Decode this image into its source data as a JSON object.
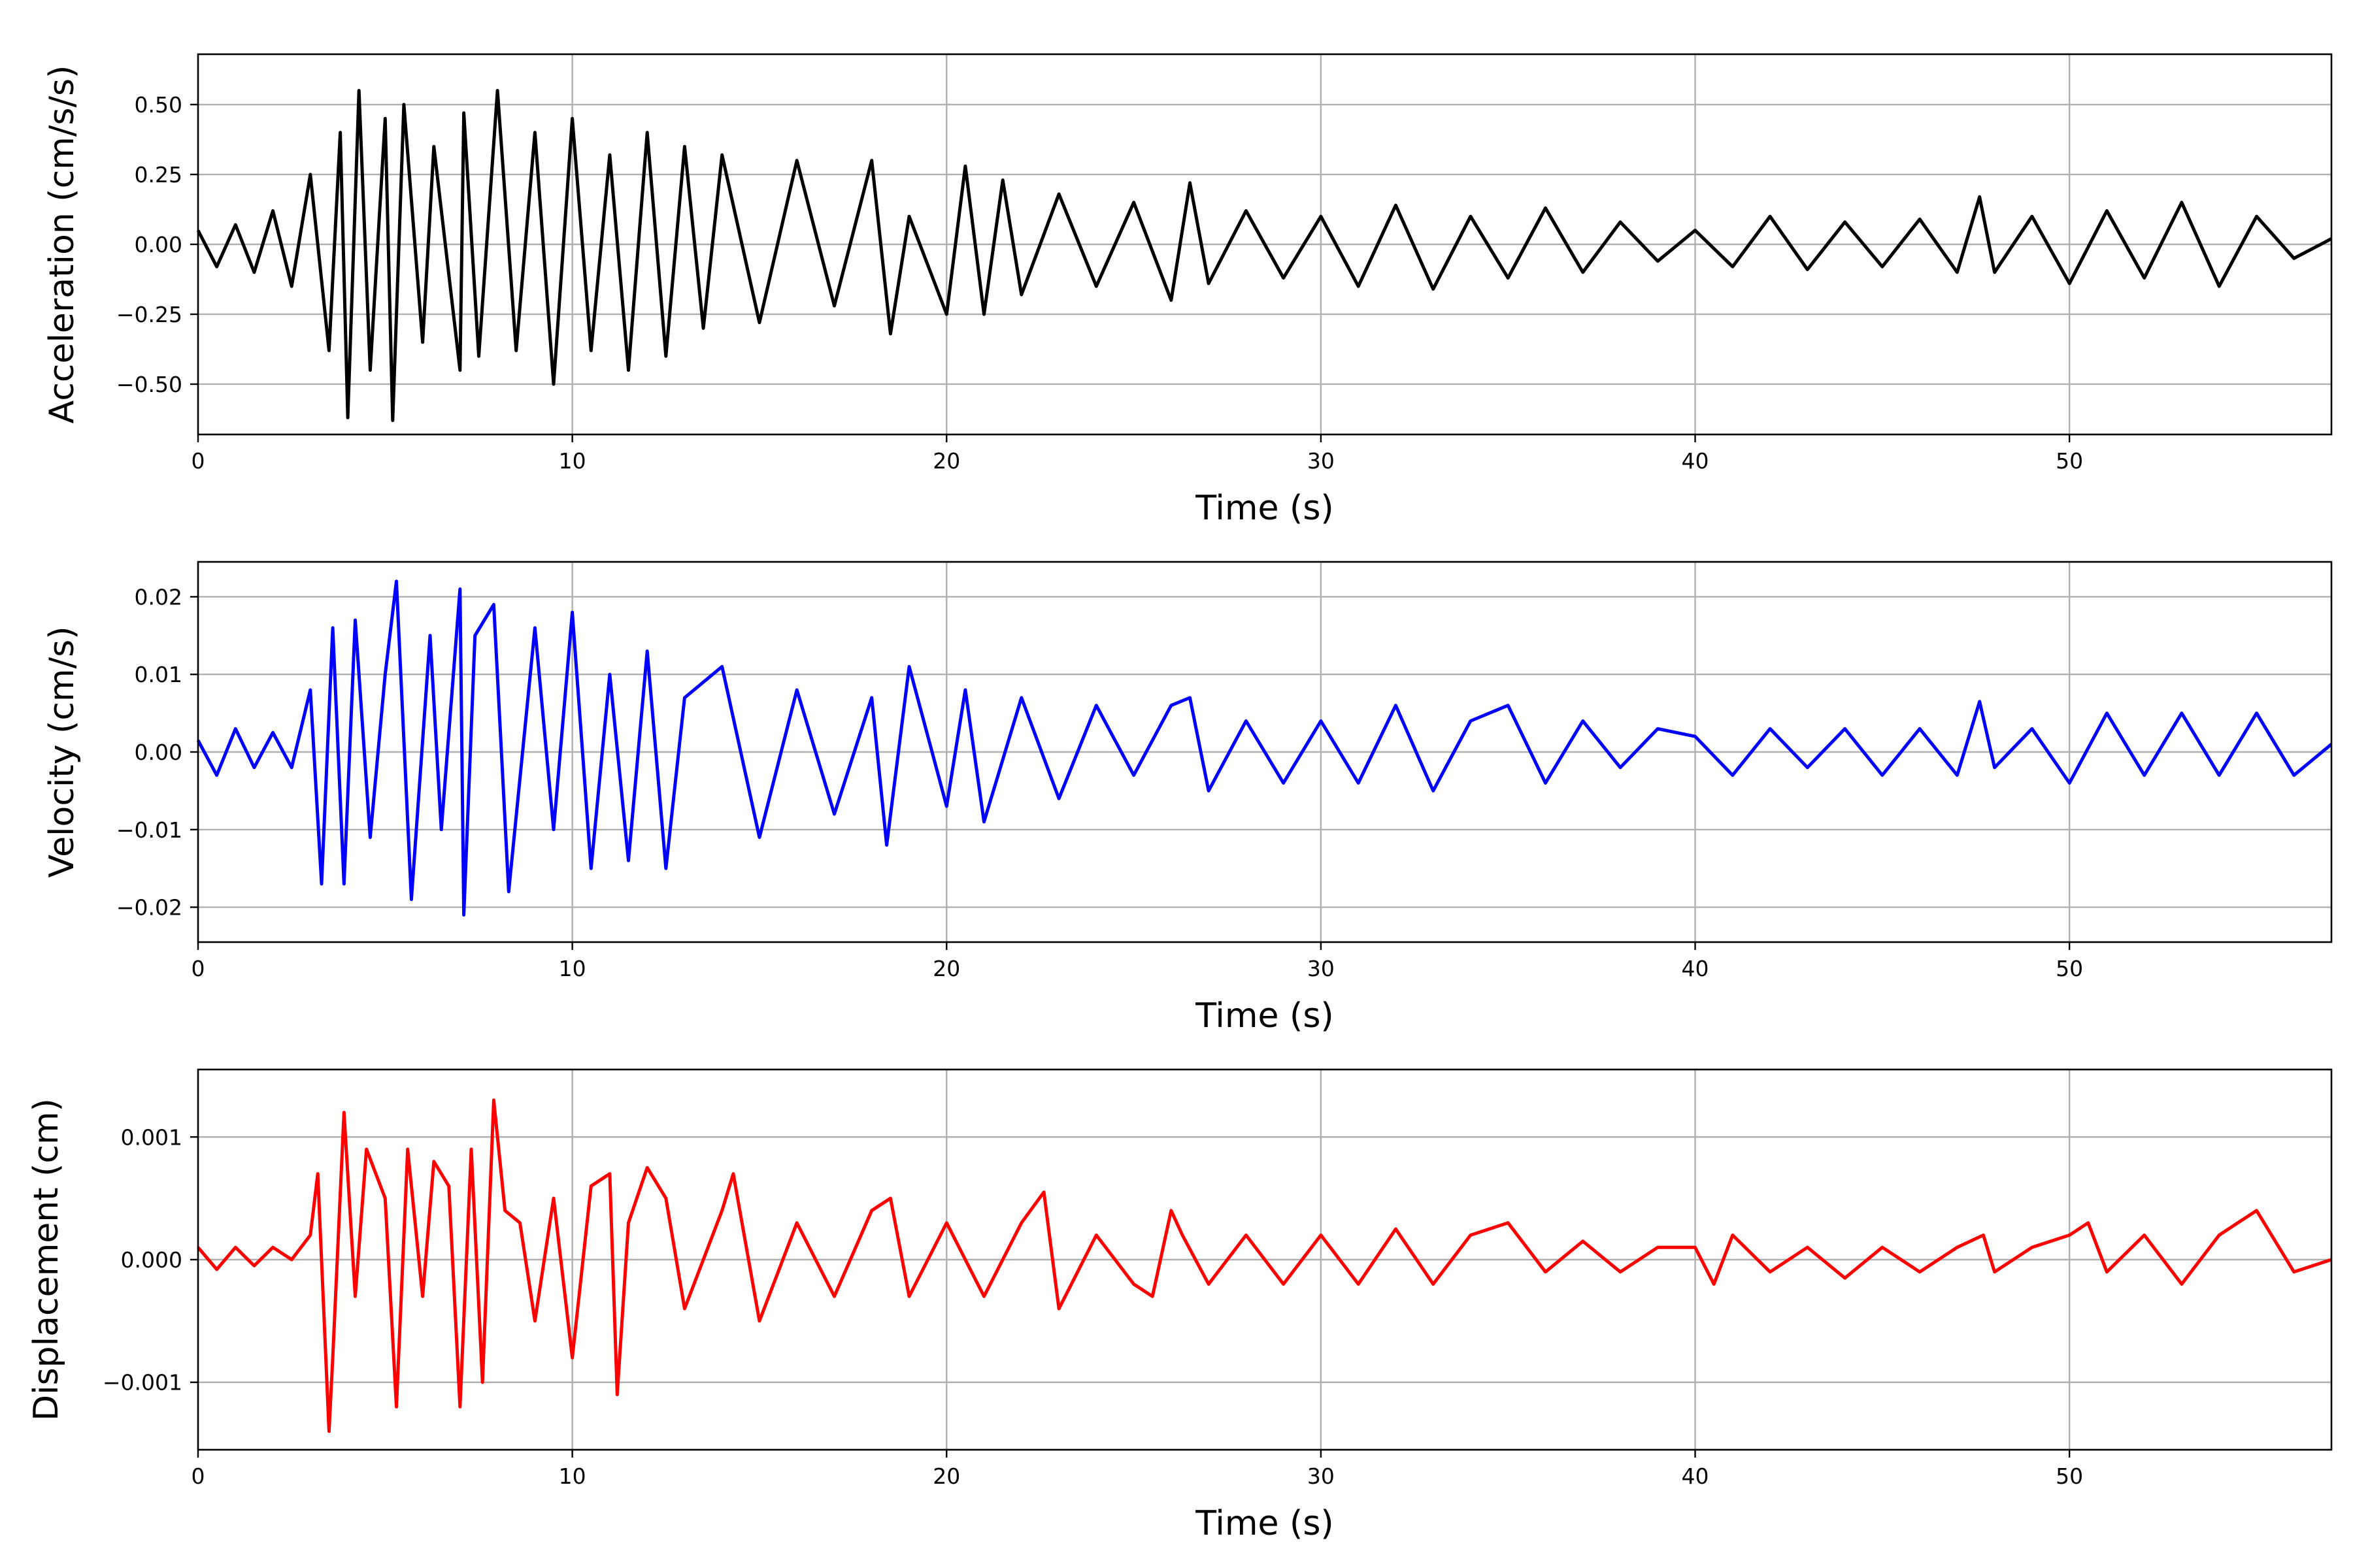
{
  "chart_data": [
    {
      "type": "line",
      "xlabel": "Time (s)",
      "ylabel": "Acceleration (cm/s/s)",
      "xlim": [
        0,
        57
      ],
      "ylim": [
        -0.68,
        0.68
      ],
      "x_ticks": [
        0,
        10,
        20,
        30,
        40,
        50
      ],
      "x_tick_labels": [
        "0",
        "10",
        "20",
        "30",
        "40",
        "50"
      ],
      "y_ticks": [
        0.5,
        0.25,
        0.0,
        -0.25,
        -0.5
      ],
      "y_tick_labels": [
        "0.50",
        "0.25",
        "0.00",
        "−0.25",
        "−0.50"
      ],
      "grid": true,
      "color": "#000000",
      "series": [
        {
          "x": [
            0,
            0.5,
            1,
            1.5,
            2,
            2.5,
            3,
            3.5,
            3.8,
            4,
            4.3,
            4.6,
            5,
            5.2,
            5.5,
            6,
            6.3,
            7,
            7.1,
            7.5,
            8,
            8.5,
            9,
            9.5,
            10,
            10.5,
            11,
            11.5,
            12,
            12.5,
            13,
            13.5,
            14,
            15,
            16,
            17,
            18,
            18.5,
            19,
            20,
            20.5,
            21,
            21.5,
            22,
            23,
            24,
            25,
            26,
            26.5,
            27,
            28,
            29,
            30,
            31,
            32,
            33,
            34,
            35,
            36,
            37,
            38,
            39,
            40,
            41,
            42,
            43,
            44,
            45,
            46,
            47,
            47.6,
            48,
            49,
            50,
            51,
            52,
            53,
            54,
            55,
            56,
            57
          ],
          "y": [
            0.05,
            -0.08,
            0.07,
            -0.1,
            0.12,
            -0.15,
            0.25,
            -0.38,
            0.4,
            -0.62,
            0.55,
            -0.45,
            0.45,
            -0.63,
            0.5,
            -0.35,
            0.35,
            -0.45,
            0.47,
            -0.4,
            0.55,
            -0.38,
            0.4,
            -0.5,
            0.45,
            -0.38,
            0.32,
            -0.45,
            0.4,
            -0.4,
            0.35,
            -0.3,
            0.32,
            -0.28,
            0.3,
            -0.22,
            0.3,
            -0.32,
            0.1,
            -0.25,
            0.28,
            -0.25,
            0.23,
            -0.18,
            0.18,
            -0.15,
            0.15,
            -0.2,
            0.22,
            -0.14,
            0.12,
            -0.12,
            0.1,
            -0.15,
            0.14,
            -0.16,
            0.1,
            -0.12,
            0.13,
            -0.1,
            0.08,
            -0.06,
            0.05,
            -0.08,
            0.1,
            -0.09,
            0.08,
            -0.08,
            0.09,
            -0.1,
            0.17,
            -0.1,
            0.1,
            -0.14,
            0.12,
            -0.12,
            0.15,
            -0.15,
            0.1,
            -0.05,
            0.02
          ]
        }
      ]
    },
    {
      "type": "line",
      "xlabel": "Time (s)",
      "ylabel": "Velocity (cm/s)",
      "xlim": [
        0,
        57
      ],
      "ylim": [
        -0.0245,
        0.0245
      ],
      "x_ticks": [
        0,
        10,
        20,
        30,
        40,
        50
      ],
      "x_tick_labels": [
        "0",
        "10",
        "20",
        "30",
        "40",
        "50"
      ],
      "y_ticks": [
        0.02,
        0.01,
        0.0,
        -0.01,
        -0.02
      ],
      "y_tick_labels": [
        "0.02",
        "0.01",
        "0.00",
        "−0.01",
        "−0.02"
      ],
      "grid": true,
      "color": "#0000ff",
      "series": [
        {
          "x": [
            0,
            0.5,
            1,
            1.5,
            2,
            2.5,
            3,
            3.3,
            3.6,
            3.9,
            4.2,
            4.6,
            5,
            5.3,
            5.7,
            6.2,
            6.5,
            7,
            7.1,
            7.4,
            7.9,
            8.3,
            9,
            9.5,
            10,
            10.5,
            11,
            11.5,
            12,
            12.5,
            13,
            14,
            15,
            16,
            17,
            18,
            18.4,
            19,
            20,
            20.5,
            21,
            22,
            23,
            24,
            25,
            26,
            26.5,
            27,
            28,
            29,
            30,
            31,
            32,
            33,
            34,
            35,
            36,
            37,
            38,
            39,
            40,
            41,
            42,
            43,
            44,
            45,
            46,
            47,
            47.6,
            48,
            49,
            50,
            51,
            52,
            53,
            54,
            55,
            56,
            57
          ],
          "y": [
            0.0015,
            -0.003,
            0.003,
            -0.002,
            0.0025,
            -0.002,
            0.008,
            -0.017,
            0.016,
            -0.017,
            0.017,
            -0.011,
            0.01,
            0.022,
            -0.019,
            0.015,
            -0.01,
            0.021,
            -0.021,
            0.015,
            0.019,
            -0.018,
            0.016,
            -0.01,
            0.018,
            -0.015,
            0.01,
            -0.014,
            0.013,
            -0.015,
            0.007,
            0.011,
            -0.011,
            0.008,
            -0.008,
            0.007,
            -0.012,
            0.011,
            -0.007,
            0.008,
            -0.009,
            0.007,
            -0.006,
            0.006,
            -0.003,
            0.006,
            0.007,
            -0.005,
            0.004,
            -0.004,
            0.004,
            -0.004,
            0.006,
            -0.005,
            0.004,
            0.006,
            -0.004,
            0.004,
            -0.002,
            0.003,
            0.002,
            -0.003,
            0.003,
            -0.002,
            0.003,
            -0.003,
            0.003,
            -0.003,
            0.0065,
            -0.002,
            0.003,
            -0.004,
            0.005,
            -0.003,
            0.005,
            -0.003,
            0.005,
            -0.003,
            0.001
          ]
        }
      ]
    },
    {
      "type": "line",
      "xlabel": "Time (s)",
      "ylabel": "Displacement (cm)",
      "xlim": [
        0,
        57
      ],
      "ylim": [
        -0.00155,
        0.00155
      ],
      "x_ticks": [
        0,
        10,
        20,
        30,
        40,
        50
      ],
      "x_tick_labels": [
        "0",
        "10",
        "20",
        "30",
        "40",
        "50"
      ],
      "y_ticks": [
        0.001,
        0.0,
        -0.001
      ],
      "y_tick_labels": [
        "0.001",
        "0.000",
        "−0.001"
      ],
      "grid": true,
      "color": "#ff0000",
      "series": [
        {
          "x": [
            0,
            0.5,
            1,
            1.5,
            2,
            2.5,
            3,
            3.2,
            3.5,
            3.6,
            3.9,
            4.2,
            4.5,
            5,
            5.3,
            5.6,
            6,
            6.3,
            6.7,
            7,
            7.3,
            7.6,
            7.9,
            8.2,
            8.6,
            9,
            9.5,
            10,
            10.5,
            11,
            11.2,
            11.5,
            12,
            12.5,
            13,
            14,
            14.3,
            15,
            16,
            17,
            18,
            18.5,
            19,
            20,
            21,
            22,
            22.6,
            23,
            24,
            25,
            25.5,
            26,
            26.3,
            27,
            28,
            29,
            30,
            31,
            32,
            33,
            34,
            35,
            36,
            37,
            38,
            39,
            40,
            40.5,
            41,
            42,
            43,
            44,
            45,
            46,
            47,
            47.7,
            48,
            49,
            50,
            50.5,
            51,
            52,
            53,
            54,
            55,
            56,
            57
          ],
          "y": [
            0.0001,
            -8e-05,
            0.0001,
            -5e-05,
            0.0001,
            0.0,
            0.0002,
            0.0007,
            -0.0014,
            -0.0008,
            0.0012,
            -0.0003,
            0.0009,
            0.0005,
            -0.0012,
            0.0009,
            -0.0003,
            0.0008,
            0.0006,
            -0.0012,
            0.0009,
            -0.001,
            0.0013,
            0.0004,
            0.0003,
            -0.0005,
            0.0005,
            -0.0008,
            0.0006,
            0.0007,
            -0.0011,
            0.0003,
            0.00075,
            0.0005,
            -0.0004,
            0.0004,
            0.0007,
            -0.0005,
            0.0003,
            -0.0003,
            0.0004,
            0.0005,
            -0.0003,
            0.0003,
            -0.0003,
            0.0003,
            0.00055,
            -0.0004,
            0.0002,
            -0.0002,
            -0.0003,
            0.0004,
            0.0002,
            -0.0002,
            0.0002,
            -0.0002,
            0.0002,
            -0.0002,
            0.00025,
            -0.0002,
            0.0002,
            0.0003,
            -0.0001,
            0.00015,
            -0.0001,
            0.0001,
            0.0001,
            -0.0002,
            0.0002,
            -0.0001,
            0.0001,
            -0.00015,
            0.0001,
            -0.0001,
            0.0001,
            0.0002,
            -0.0001,
            0.0001,
            0.0002,
            0.0003,
            -0.0001,
            0.0002,
            -0.0002,
            0.0002,
            0.0004,
            -0.0001,
            0.0
          ]
        }
      ]
    }
  ]
}
